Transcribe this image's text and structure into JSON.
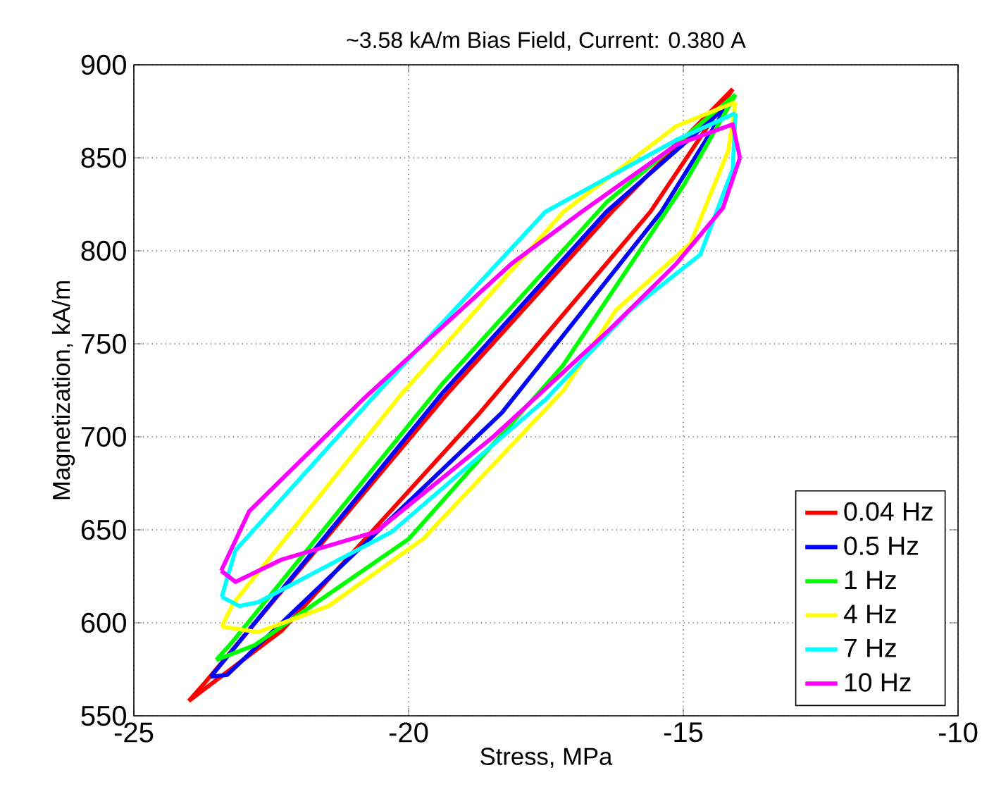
{
  "chart_data": {
    "type": "line",
    "title": "~3.58 kA/m Bias Field, Current: 0.380 A",
    "xlabel": "Stress, MPa",
    "ylabel": "Magnetization, kA/m",
    "xlim": [
      -25,
      -10
    ],
    "xticks": [
      -25,
      -20,
      -15,
      -10
    ],
    "ylim": [
      550,
      900
    ],
    "yticks": [
      550,
      600,
      650,
      700,
      750,
      800,
      850,
      900
    ],
    "grid": true,
    "legend": "bottom right",
    "line_style": "solid",
    "series": [
      {
        "name": "0.04 Hz",
        "color": "#ff0000",
        "x": [
          -24.0,
          -23.7,
          -22.0,
          -19.3,
          -16.3,
          -14.1
        ],
        "values": [
          558,
          568,
          628,
          723,
          821,
          887
        ]
      },
      {
        "color": "#ff0000",
        "x": [
          -24.0,
          -22.3,
          -18.7,
          -15.6,
          -14.1
        ],
        "values": [
          558,
          596,
          713,
          821,
          887
        ]
      },
      {
        "name": "0.5 Hz",
        "color": "#0000ff",
        "x": [
          -23.6,
          -19.4,
          -16.4,
          -14.2
        ],
        "values": [
          571,
          723,
          821,
          878
        ]
      },
      {
        "color": "#0000ff",
        "x": [
          -23.6,
          -23.3,
          -18.3,
          -15.4,
          -14.2
        ],
        "values": [
          571,
          572,
          713,
          821,
          878
        ]
      },
      {
        "name": "1 Hz",
        "color": "#00ff00",
        "x": [
          -23.5,
          -23.2,
          -19.4,
          -16.4,
          -14.05
        ],
        "values": [
          580,
          590,
          728,
          826,
          884
        ]
      },
      {
        "color": "#00ff00",
        "x": [
          -23.5,
          -22.8,
          -20.0,
          -17.2,
          -15.0,
          -14.05
        ],
        "values": [
          580,
          588,
          645,
          738,
          835,
          884
        ]
      },
      {
        "name": "4 Hz",
        "color": "#ffff00",
        "x": [
          -23.4,
          -23.2,
          -22.74,
          -20.13,
          -17.18,
          -15.13,
          -14.05
        ],
        "values": [
          598,
          610,
          627,
          723,
          821,
          867,
          880
        ]
      },
      {
        "color": "#ffff00",
        "x": [
          -23.4,
          -22.74,
          -21.46,
          -19.74,
          -17.18,
          -16.23,
          -14.87,
          -14.18,
          -14.05
        ],
        "values": [
          598,
          595,
          609,
          645,
          725,
          768,
          804,
          854,
          880
        ]
      },
      {
        "name": "7 Hz",
        "color": "#00ffff",
        "x": [
          -23.4,
          -23.15,
          -20.59,
          -17.51,
          -15.1,
          -14.05
        ],
        "values": [
          614,
          639,
          723,
          821,
          860,
          874
        ]
      },
      {
        "color": "#00ffff",
        "x": [
          -23.4,
          -23.08,
          -22.74,
          -20.3,
          -17.51,
          -15.97,
          -14.69,
          -14.1,
          -14.05
        ],
        "values": [
          614,
          609,
          611,
          649,
          720,
          768,
          798,
          844,
          874
        ]
      },
      {
        "name": "10 Hz",
        "color": "#ff00ff",
        "x": [
          -23.41,
          -22.9,
          -20.8,
          -18.13,
          -16.85,
          -15.13,
          -14.1,
          -13.97
        ],
        "values": [
          628,
          660,
          721,
          793,
          821,
          857,
          868,
          850
        ]
      },
      {
        "color": "#ff00ff",
        "x": [
          -23.41,
          -23.15,
          -22.31,
          -20.59,
          -18.46,
          -16.33,
          -15.13,
          -14.28,
          -13.97
        ],
        "values": [
          628,
          622,
          634,
          649,
          700,
          758,
          793,
          823,
          850
        ]
      }
    ]
  }
}
